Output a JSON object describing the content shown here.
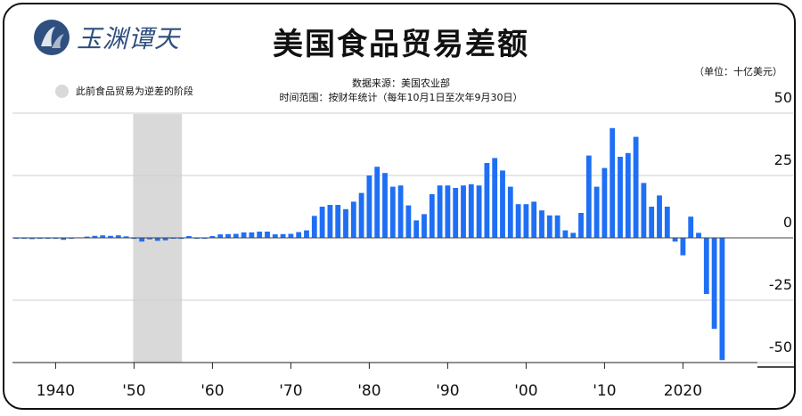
{
  "header": {
    "logo_text": "玉渊谭天",
    "title": "美国食品贸易差额"
  },
  "notes": {
    "unit": "（单位：十亿美元）",
    "legend_label": "此前食品贸易为逆差的阶段",
    "source": "数据来源：美国农业部",
    "range": "时间范围：按财年统计（每年10月1日至次年9月30日）"
  },
  "colors": {
    "bar": "#1f6ff5",
    "deficit_band": "#d9d9d9",
    "grid": "#cfcfcf",
    "text": "#111111",
    "logo": "#2f4f7f"
  },
  "chart_data": {
    "type": "bar",
    "title": "美国食品贸易差额",
    "ylabel": "十亿美元",
    "ylim": [
      -50,
      50
    ],
    "y_ticks": [
      50,
      25,
      0,
      -25,
      -50
    ],
    "x_ticks": [
      {
        "year": 1940,
        "label": "1940"
      },
      {
        "year": 1950,
        "label": "'50"
      },
      {
        "year": 1960,
        "label": "'60"
      },
      {
        "year": 1970,
        "label": "'70"
      },
      {
        "year": 1980,
        "label": "'80"
      },
      {
        "year": 1990,
        "label": "'90"
      },
      {
        "year": 2000,
        "label": "'00"
      },
      {
        "year": 2010,
        "label": "'10"
      },
      {
        "year": 2020,
        "label": "2020"
      }
    ],
    "deficit_period": [
      1950,
      1956
    ],
    "grid": true,
    "years": [
      1935,
      1936,
      1937,
      1938,
      1939,
      1940,
      1941,
      1942,
      1943,
      1944,
      1945,
      1946,
      1947,
      1948,
      1949,
      1950,
      1951,
      1952,
      1953,
      1954,
      1955,
      1956,
      1957,
      1958,
      1959,
      1960,
      1961,
      1962,
      1963,
      1964,
      1965,
      1966,
      1967,
      1968,
      1969,
      1970,
      1971,
      1972,
      1973,
      1974,
      1975,
      1976,
      1977,
      1978,
      1979,
      1980,
      1981,
      1982,
      1983,
      1984,
      1985,
      1986,
      1987,
      1988,
      1989,
      1990,
      1991,
      1992,
      1993,
      1994,
      1995,
      1996,
      1997,
      1998,
      1999,
      2000,
      2001,
      2002,
      2003,
      2004,
      2005,
      2006,
      2007,
      2008,
      2009,
      2010,
      2011,
      2012,
      2013,
      2014,
      2015,
      2016,
      2017,
      2018,
      2019,
      2020,
      2021,
      2022,
      2023,
      2024,
      2025
    ],
    "values": [
      -0.3,
      -0.3,
      -0.5,
      -0.2,
      -0.2,
      -0.2,
      -0.8,
      -0.3,
      0.2,
      0.5,
      0.8,
      1.0,
      0.8,
      1.0,
      0.6,
      -0.4,
      -1.5,
      -0.6,
      -1.2,
      -1.0,
      -0.2,
      -0.4,
      0.7,
      -0.3,
      -0.2,
      0.7,
      1.4,
      1.5,
      1.6,
      2.2,
      2.2,
      2.5,
      2.5,
      1.4,
      1.5,
      1.6,
      2.3,
      3.0,
      8.8,
      12.5,
      13.2,
      13.2,
      11.5,
      14.5,
      18.0,
      25.0,
      28.5,
      26.0,
      20.5,
      21.0,
      13.0,
      7.0,
      9.5,
      17.5,
      21.0,
      21.0,
      20.0,
      21.0,
      21.5,
      21.0,
      30.0,
      32.0,
      27.0,
      20.5,
      13.5,
      13.5,
      14.5,
      11.0,
      9.0,
      9.0,
      3.0,
      2.0,
      10.0,
      33.0,
      20.5,
      28.0,
      44.0,
      32.5,
      34.0,
      40.5,
      22.0,
      12.5,
      17.0,
      12.5,
      -1.5,
      -7.0,
      8.5,
      2.0,
      -22.5,
      -36.5,
      -49.0
    ]
  }
}
